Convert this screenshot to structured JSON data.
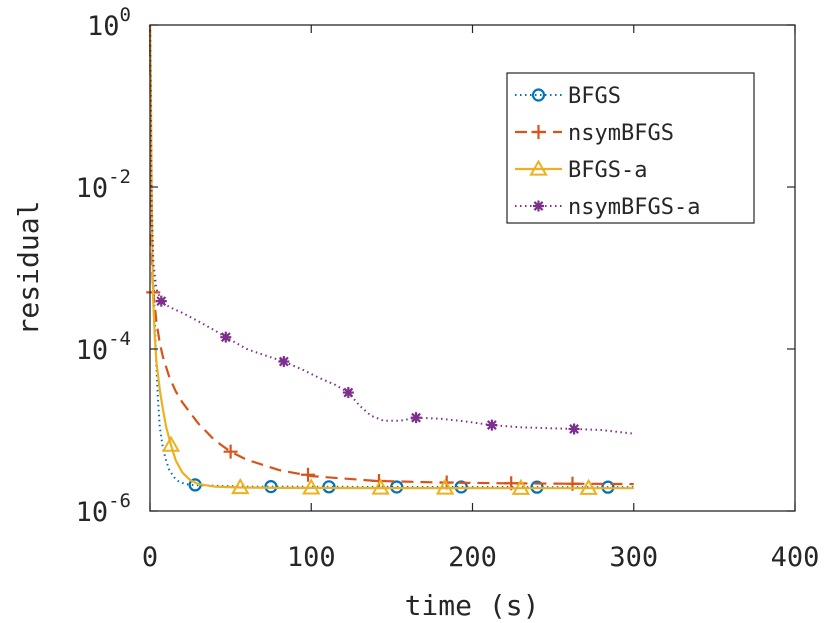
{
  "chart_data": {
    "type": "line",
    "title": "",
    "xlabel": "time (s)",
    "ylabel": "residual",
    "xlim": [
      0,
      400
    ],
    "ylim_log10": [
      -6,
      0
    ],
    "yscale": "log",
    "grid": false,
    "legend_position": "top-right",
    "xticks": [
      {
        "value": 0,
        "label": "0"
      },
      {
        "value": 100,
        "label": "100"
      },
      {
        "value": 200,
        "label": "200"
      },
      {
        "value": 300,
        "label": "300"
      },
      {
        "value": 400,
        "label": "400"
      }
    ],
    "yticks": [
      {
        "value": 1.0,
        "base": "10",
        "exp": "0"
      },
      {
        "value": 0.01,
        "base": "10",
        "exp": "-2"
      },
      {
        "value": 0.0001,
        "base": "10",
        "exp": "-4"
      },
      {
        "value": 1e-06,
        "base": "10",
        "exp": "-6"
      }
    ],
    "series": [
      {
        "name": "BFGS",
        "color": "#0072bd",
        "dash": "dotted",
        "marker": "circle",
        "x": [
          0,
          0.5,
          1,
          2,
          3,
          4,
          5,
          6,
          8,
          10,
          12,
          15,
          18,
          22,
          26,
          30,
          40,
          60,
          80,
          120,
          160,
          200,
          240,
          280,
          300
        ],
        "y": [
          1.0,
          0.1,
          0.01,
          0.0012,
          0.00022,
          6e-05,
          2.3e-05,
          1.1e-05,
          6e-06,
          4.2e-06,
          3.2e-06,
          2.6e-06,
          2.3e-06,
          2.15e-06,
          2.1e-06,
          2.08e-06,
          2.05e-06,
          2e-06,
          2e-06,
          1.99e-06,
          1.98e-06,
          1.98e-06,
          1.97e-06,
          1.97e-06,
          1.97e-06
        ],
        "marker_x": [
          28,
          75,
          111,
          153,
          193,
          240,
          284
        ],
        "marker_y": [
          2.1e-06,
          2e-06,
          1.99e-06,
          1.98e-06,
          1.98e-06,
          1.97e-06,
          1.97e-06
        ]
      },
      {
        "name": "nsymBFGS",
        "color": "#d95319",
        "dash": "dashed",
        "marker": "plus",
        "x": [
          0,
          0.5,
          1,
          1.5,
          2,
          3,
          4,
          6,
          8,
          12,
          16,
          20,
          30,
          40,
          50,
          60,
          80,
          100,
          140,
          180,
          220,
          260,
          300
        ],
        "y": [
          1.0,
          0.05,
          0.002,
          0.0008,
          0.0005,
          0.00034,
          0.00022,
          0.00012,
          8e-05,
          4.5e-05,
          3e-05,
          2.2e-05,
          1.2e-05,
          7.5e-06,
          5.4e-06,
          4.3e-06,
          3.2e-06,
          2.7e-06,
          2.35e-06,
          2.25e-06,
          2.2e-06,
          2.17e-06,
          2.15e-06
        ],
        "marker_x": [
          2,
          50,
          98,
          142,
          184,
          224,
          262
        ],
        "marker_y": [
          0.0005,
          5.4e-06,
          2.8e-06,
          2.35e-06,
          2.25e-06,
          2.2e-06,
          2.17e-06
        ]
      },
      {
        "name": "BFGS-a",
        "color": "#edb120",
        "dash": "solid",
        "marker": "triangle",
        "x": [
          0,
          0.5,
          1,
          1.5,
          2,
          3,
          4,
          6,
          8,
          10,
          13,
          16,
          20,
          25,
          30,
          40,
          56,
          80,
          100,
          143,
          183,
          230,
          272,
          300
        ],
        "y": [
          1.0,
          0.2,
          0.01,
          0.0015,
          0.0004,
          0.00014,
          7e-05,
          3.2e-05,
          1.8e-05,
          1.1e-05,
          6.5e-06,
          4.2e-06,
          3e-06,
          2.4e-06,
          2.15e-06,
          2e-06,
          1.95e-06,
          1.93e-06,
          1.93e-06,
          1.92e-06,
          1.92e-06,
          1.91e-06,
          1.91e-06,
          1.91e-06
        ],
        "marker_x": [
          13,
          56,
          100,
          143,
          183,
          230,
          272
        ],
        "marker_y": [
          6.5e-06,
          1.95e-06,
          1.93e-06,
          1.92e-06,
          1.92e-06,
          1.91e-06,
          1.91e-06
        ]
      },
      {
        "name": "nsymBFGS-a",
        "color": "#7e2f8e",
        "dash": "dotted",
        "marker": "asterisk",
        "x": [
          0,
          0.5,
          1,
          2,
          4,
          7,
          12,
          20,
          30,
          40,
          47,
          60,
          70,
          83,
          95,
          105,
          115,
          123,
          130,
          137,
          145,
          155,
          165,
          180,
          195,
          212,
          230,
          250,
          263,
          280,
          300
        ],
        "y": [
          1.0,
          0.1,
          0.005,
          0.0012,
          0.00055,
          0.00039,
          0.00033,
          0.00028,
          0.00022,
          0.00017,
          0.00014,
          0.0001,
          8.5e-05,
          7e-05,
          5.5e-05,
          4.4e-05,
          3.6e-05,
          2.9e-05,
          2e-05,
          1.5e-05,
          1.3e-05,
          1.3e-05,
          1.42e-05,
          1.38e-05,
          1.28e-05,
          1.15e-05,
          1.08e-05,
          1.05e-05,
          1.03e-05,
          1e-05,
          9e-06
        ],
        "marker_x": [
          7,
          47,
          83,
          123,
          165,
          212,
          263
        ],
        "marker_y": [
          0.00039,
          0.00014,
          7e-05,
          2.9e-05,
          1.42e-05,
          1.15e-05,
          1.03e-05
        ]
      }
    ]
  }
}
